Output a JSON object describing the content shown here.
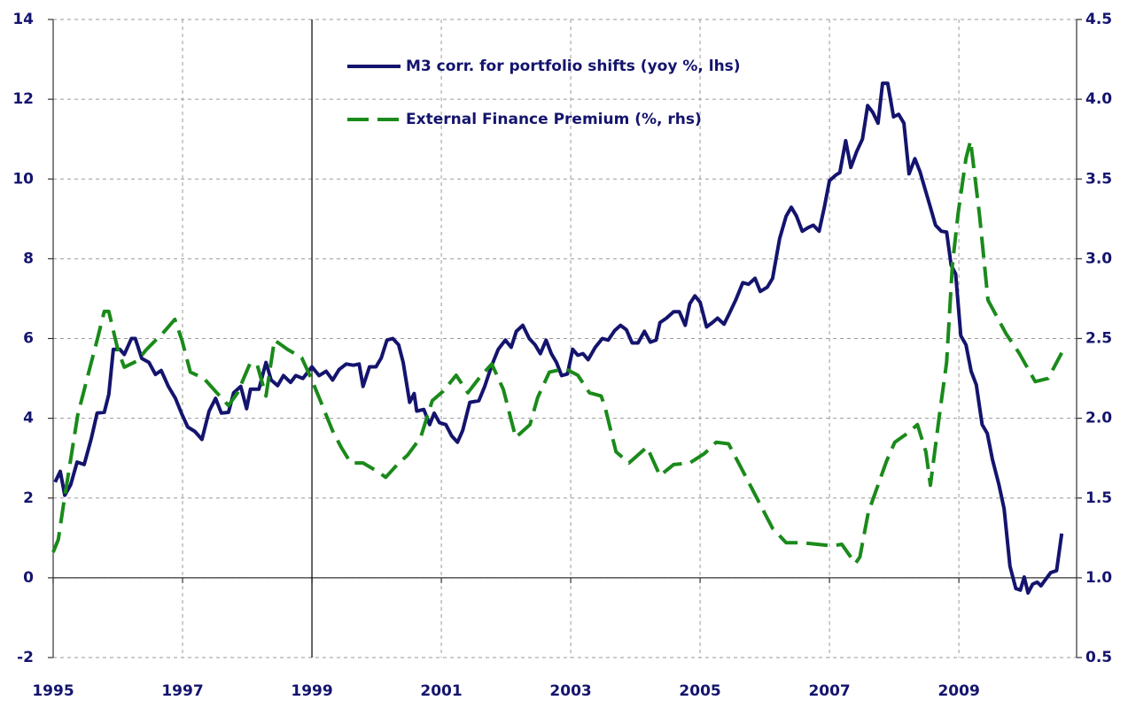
{
  "chart_data": {
    "type": "line",
    "xlim": [
      1995,
      2010.82
    ],
    "xticks": [
      1995,
      1997,
      1999,
      2001,
      2003,
      2005,
      2007,
      2009
    ],
    "ylim": [
      -2,
      14
    ],
    "yticks": [
      -2,
      0,
      2,
      4,
      6,
      8,
      10,
      12,
      14
    ],
    "y2lim": [
      0.5,
      4.5
    ],
    "y2ticks": [
      0.5,
      {
        "value": 1,
        "label": "1.0"
      },
      1.5,
      {
        "value": 2,
        "label": "2.0"
      },
      2.5,
      {
        "value": 3,
        "label": "3.0"
      },
      3.5,
      {
        "value": 4,
        "label": "4.0"
      },
      4.5
    ],
    "grid": true,
    "vline": 1999,
    "series": [
      {
        "name": "M3 corr. for portfolio shifts (yoy %, lhs)",
        "color": "#14146e",
        "dash": false,
        "x": [
          1995.03,
          1995.11,
          1995.18,
          1995.27,
          1995.37,
          1995.48,
          1995.59,
          1995.68,
          1995.79,
          1995.86,
          1995.93,
          1996.03,
          1996.1,
          1996.21,
          1996.27,
          1996.37,
          1996.48,
          1996.58,
          1996.67,
          1996.78,
          1996.89,
          1996.99,
          1997.08,
          1997.19,
          1997.3,
          1997.41,
          1997.51,
          1997.6,
          1997.71,
          1997.79,
          1997.9,
          1997.99,
          1998.05,
          1998.18,
          1998.29,
          1998.37,
          1998.47,
          1998.56,
          1998.67,
          1998.75,
          1998.86,
          1999.0,
          1999.11,
          1999.22,
          1999.32,
          1999.42,
          1999.53,
          1999.64,
          1999.73,
          1999.79,
          1999.89,
          1999.99,
          2000.07,
          2000.16,
          2000.25,
          2000.34,
          2000.41,
          2000.51,
          2000.58,
          2000.62,
          2000.73,
          2000.82,
          2000.89,
          2000.97,
          2001.07,
          2001.16,
          2001.25,
          2001.33,
          2001.44,
          2001.58,
          2001.67,
          2001.78,
          2001.88,
          2001.99,
          2002.08,
          2002.16,
          2002.26,
          2002.36,
          2002.45,
          2002.53,
          2002.62,
          2002.7,
          2002.78,
          2002.86,
          2002.95,
          2003.03,
          2003.11,
          2003.19,
          2003.27,
          2003.38,
          2003.49,
          2003.58,
          2003.68,
          2003.77,
          2003.86,
          2003.95,
          2004.04,
          2004.14,
          2004.23,
          2004.32,
          2004.38,
          2004.48,
          2004.59,
          2004.68,
          2004.77,
          2004.84,
          2004.92,
          2005.0,
          2005.1,
          2005.19,
          2005.27,
          2005.37,
          2005.45,
          2005.55,
          2005.66,
          2005.75,
          2005.85,
          2005.93,
          2006.04,
          2006.12,
          2006.23,
          2006.33,
          2006.41,
          2006.49,
          2006.58,
          2006.67,
          2006.75,
          2006.84,
          2006.92,
          2007.0,
          2007.1,
          2007.16,
          2007.25,
          2007.33,
          2007.42,
          2007.51,
          2007.59,
          2007.67,
          2007.75,
          2007.82,
          2007.9,
          2007.99,
          2008.07,
          2008.15,
          2008.23,
          2008.32,
          2008.4,
          2008.48,
          2008.56,
          2008.64,
          2008.73,
          2008.81,
          2008.88,
          2008.95,
          2009.03,
          2009.11,
          2009.19,
          2009.27,
          2009.36,
          2009.44,
          2009.52,
          2009.62,
          2009.7,
          2009.79,
          2009.88,
          2009.95,
          2010.01,
          2010.07,
          2010.14,
          2010.21,
          2010.27,
          2010.34,
          2010.42,
          2010.51,
          2010.59
        ],
        "values": [
          2.4,
          2.67,
          2.07,
          2.33,
          2.9,
          2.84,
          3.5,
          4.13,
          4.15,
          4.6,
          5.73,
          5.73,
          5.6,
          6.0,
          6.0,
          5.5,
          5.4,
          5.1,
          5.2,
          4.8,
          4.5,
          4.1,
          3.78,
          3.67,
          3.47,
          4.18,
          4.5,
          4.13,
          4.15,
          4.64,
          4.8,
          4.24,
          4.73,
          4.73,
          5.4,
          4.96,
          4.82,
          5.07,
          4.9,
          5.07,
          5.0,
          5.29,
          5.07,
          5.18,
          4.96,
          5.22,
          5.36,
          5.33,
          5.36,
          4.8,
          5.29,
          5.29,
          5.51,
          5.96,
          6.0,
          5.84,
          5.4,
          4.4,
          4.62,
          4.18,
          4.22,
          3.84,
          4.13,
          3.89,
          3.84,
          3.56,
          3.4,
          3.69,
          4.4,
          4.44,
          4.8,
          5.33,
          5.73,
          5.96,
          5.78,
          6.18,
          6.33,
          6.0,
          5.84,
          5.62,
          5.96,
          5.62,
          5.4,
          5.07,
          5.11,
          5.73,
          5.58,
          5.62,
          5.47,
          5.78,
          6.0,
          5.96,
          6.2,
          6.33,
          6.22,
          5.89,
          5.89,
          6.18,
          5.91,
          5.96,
          6.4,
          6.51,
          6.67,
          6.67,
          6.33,
          6.87,
          7.07,
          6.91,
          6.29,
          6.4,
          6.51,
          6.36,
          6.62,
          6.96,
          7.4,
          7.36,
          7.51,
          7.18,
          7.29,
          7.51,
          8.51,
          9.07,
          9.29,
          9.07,
          8.69,
          8.78,
          8.84,
          8.69,
          9.29,
          9.96,
          10.1,
          10.16,
          10.96,
          10.29,
          10.69,
          11.0,
          11.84,
          11.67,
          11.4,
          12.4,
          12.4,
          11.56,
          11.62,
          11.4,
          10.13,
          10.51,
          10.18,
          9.73,
          9.29,
          8.84,
          8.69,
          8.67,
          7.84,
          7.62,
          6.07,
          5.84,
          5.18,
          4.84,
          3.84,
          3.62,
          2.96,
          2.33,
          1.73,
          0.29,
          -0.27,
          -0.31,
          0.02,
          -0.38,
          -0.16,
          -0.11,
          -0.2,
          -0.04,
          0.13,
          0.18,
          1.11
        ]
      },
      {
        "name": "External Finance Premium (%, rhs)",
        "color": "#1a8a1a",
        "dash": true,
        "axis": "y2",
        "x": [
          1995.0,
          1995.08,
          1995.16,
          1995.27,
          1995.38,
          1995.55,
          1995.68,
          1995.79,
          1995.86,
          1996.0,
          1996.1,
          1996.3,
          1996.44,
          1996.71,
          1996.88,
          1996.99,
          1997.12,
          1997.33,
          1997.53,
          1997.71,
          1997.85,
          1998.04,
          1998.15,
          1998.29,
          1998.42,
          1998.63,
          1998.84,
          1999.0,
          1999.14,
          1999.32,
          1999.45,
          1999.6,
          1999.79,
          2000.0,
          2000.14,
          2000.32,
          2000.48,
          2000.68,
          2000.86,
          2001.03,
          2001.23,
          2001.41,
          2001.58,
          2001.78,
          2001.96,
          2002.15,
          2002.37,
          2002.49,
          2002.67,
          2002.92,
          2003.11,
          2003.29,
          2003.47,
          2003.53,
          2003.7,
          2003.9,
          2004.18,
          2004.38,
          2004.59,
          2004.84,
          2005.07,
          2005.25,
          2005.44,
          2005.62,
          2005.89,
          2006.12,
          2006.33,
          2006.58,
          2006.81,
          2007.05,
          2007.19,
          2007.4,
          2007.47,
          2007.6,
          2007.88,
          2008.01,
          2008.22,
          2008.36,
          2008.49,
          2008.56,
          2008.7,
          2008.81,
          2008.9,
          2008.99,
          2009.11,
          2009.18,
          2009.32,
          2009.45,
          2009.73,
          2009.93,
          2010.18,
          2010.38,
          2010.59
        ],
        "values": [
          1.16,
          1.24,
          1.46,
          1.74,
          2.02,
          2.29,
          2.49,
          2.67,
          2.67,
          2.43,
          2.32,
          2.36,
          2.43,
          2.54,
          2.62,
          2.49,
          2.29,
          2.25,
          2.16,
          2.08,
          2.16,
          2.34,
          2.34,
          2.14,
          2.49,
          2.43,
          2.38,
          2.24,
          2.1,
          1.92,
          1.82,
          1.72,
          1.72,
          1.67,
          1.63,
          1.71,
          1.77,
          1.88,
          2.11,
          2.17,
          2.27,
          2.16,
          2.25,
          2.34,
          2.18,
          1.88,
          1.96,
          2.13,
          2.29,
          2.31,
          2.27,
          2.16,
          2.14,
          2.07,
          1.79,
          1.72,
          1.82,
          1.64,
          1.71,
          1.72,
          1.78,
          1.85,
          1.84,
          1.7,
          1.49,
          1.31,
          1.22,
          1.22,
          1.21,
          1.2,
          1.21,
          1.09,
          1.13,
          1.41,
          1.73,
          1.85,
          1.91,
          1.96,
          1.79,
          1.58,
          2.02,
          2.35,
          2.96,
          3.29,
          3.63,
          3.74,
          3.27,
          2.74,
          2.53,
          2.41,
          2.23,
          2.25,
          2.41
        ]
      }
    ]
  }
}
